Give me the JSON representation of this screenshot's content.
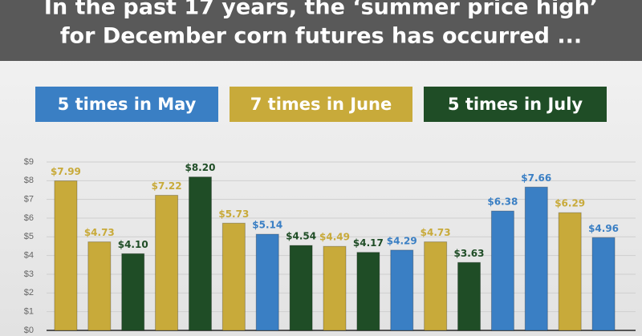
{
  "chart_data": {
    "type": "bar",
    "title": [
      "In the past 17 years, the ‘summer price high’",
      "for December corn futures has occurred ..."
    ],
    "categories": [
      null,
      null,
      null,
      null,
      null,
      null,
      null,
      null,
      null,
      null,
      null,
      null,
      null,
      null,
      null,
      null,
      null
    ],
    "series": [
      {
        "name": "5 times in May",
        "color": "#3a7fc4",
        "values": [
          null,
          null,
          null,
          null,
          null,
          null,
          5.14,
          null,
          null,
          null,
          4.29,
          null,
          null,
          6.38,
          7.66,
          null,
          4.96
        ],
        "value_labels": [
          null,
          null,
          null,
          null,
          null,
          null,
          "$5.14",
          null,
          null,
          null,
          "$4.29",
          null,
          null,
          "$6.38",
          "$7.66",
          null,
          "$4.96"
        ]
      },
      {
        "name": "7 times in June",
        "color": "#c8aa3a",
        "values": [
          7.99,
          4.73,
          null,
          7.22,
          null,
          5.73,
          null,
          null,
          4.49,
          null,
          null,
          4.73,
          null,
          null,
          null,
          6.29,
          null
        ],
        "value_labels": [
          "$7.99",
          "$4.73",
          null,
          "$7.22",
          null,
          "$5.73",
          null,
          null,
          "$4.49",
          null,
          null,
          "$4.73",
          null,
          null,
          null,
          "$6.29",
          null
        ]
      },
      {
        "name": "5 times in July",
        "color": "#1f4d26",
        "values": [
          null,
          null,
          4.1,
          null,
          8.2,
          null,
          null,
          4.54,
          null,
          4.17,
          null,
          null,
          3.63,
          null,
          null,
          null,
          null
        ],
        "value_labels": [
          null,
          null,
          "$4.10",
          null,
          "$8.20",
          null,
          null,
          "$4.54",
          null,
          "$4.17",
          null,
          null,
          "$3.63",
          null,
          null,
          null,
          null
        ]
      }
    ],
    "ylim": [
      0,
      9
    ],
    "yticks": [
      {
        "value": 0,
        "label": "$0"
      },
      {
        "value": 1,
        "label": "$1"
      },
      {
        "value": 2,
        "label": "$2"
      },
      {
        "value": 3,
        "label": "$3"
      },
      {
        "value": 4,
        "label": "$4"
      },
      {
        "value": 5,
        "label": "$5"
      },
      {
        "value": 6,
        "label": "$6"
      },
      {
        "value": 7,
        "label": "$7"
      },
      {
        "value": 8,
        "label": "$8"
      },
      {
        "value": 9,
        "label": "$9"
      }
    ],
    "grid": true
  }
}
